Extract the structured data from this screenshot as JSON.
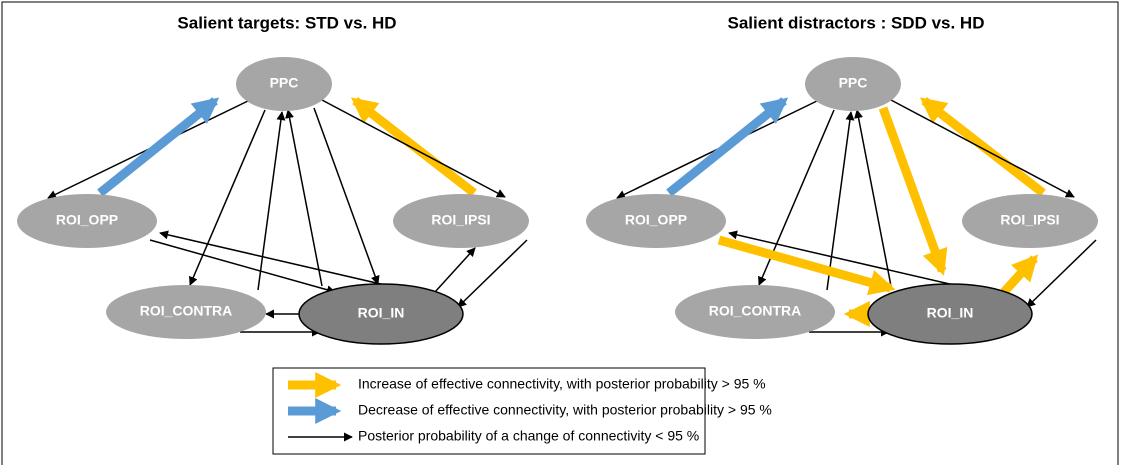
{
  "panels": [
    {
      "title": "Salient targets: STD vs. HD",
      "nodes": [
        "PPC",
        "ROI_OPP",
        "ROI_IPSI",
        "ROI_CONTRA",
        "ROI_IN"
      ]
    },
    {
      "title": "Salient distractors : SDD vs. HD",
      "nodes": [
        "PPC",
        "ROI_OPP",
        "ROI_IPSI",
        "ROI_CONTRA",
        "ROI_IN"
      ]
    }
  ],
  "legend": [
    "Increase of effective connectivity, with posterior probability > 95 %",
    "Decrease of effective connectivity, with posterior probability > 95 %",
    "Posterior probability of a change of connectivity < 95 %"
  ]
}
